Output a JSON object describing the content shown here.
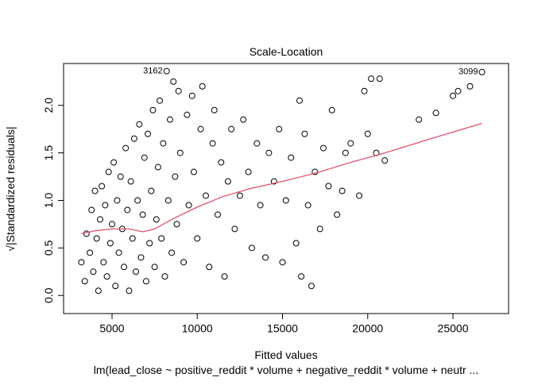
{
  "chart_data": {
    "type": "scatter",
    "title": "Scale-Location",
    "x_label": "Fitted values",
    "y_label": "√|Standardized residuals|",
    "subtitle": "lm(lead_close ~ positive_reddit * volume + negative_reddit * volume + neutr ...",
    "xlim": [
      2157,
      28262
    ],
    "ylim": [
      -0.19,
      2.44
    ],
    "xticks": [
      5000,
      10000,
      15000,
      20000,
      25000
    ],
    "yticks": [
      {
        "value": 0,
        "label": "0.0"
      },
      {
        "value": 0.5,
        "label": "0.5"
      },
      {
        "value": 1,
        "label": "1.0"
      },
      {
        "value": 1.5,
        "label": "1.5"
      },
      {
        "value": 2,
        "label": "2.0"
      }
    ],
    "series": [
      {
        "type": "scatter",
        "color": "#000000",
        "x": [
          3200,
          3400,
          3500,
          3700,
          3800,
          3900,
          4000,
          4100,
          4200,
          4300,
          4400,
          4500,
          4600,
          4700,
          4800,
          4900,
          5000,
          5100,
          5200,
          5300,
          5400,
          5500,
          5600,
          5700,
          5800,
          5900,
          6000,
          6100,
          6200,
          6300,
          6400,
          6500,
          6600,
          6700,
          6800,
          6900,
          7000,
          7100,
          7200,
          7300,
          7400,
          7500,
          7600,
          7700,
          7800,
          7900,
          8000,
          8100,
          8200,
          8300,
          8400,
          8500,
          8600,
          8700,
          8800,
          8900,
          9000,
          9200,
          9400,
          9500,
          9700,
          9800,
          10000,
          10200,
          10300,
          10500,
          10700,
          10900,
          11000,
          11200,
          11400,
          11600,
          11800,
          12000,
          12200,
          12500,
          12700,
          13000,
          13200,
          13500,
          13700,
          14000,
          14200,
          14500,
          14800,
          15000,
          15200,
          15500,
          15800,
          16000,
          16100,
          16300,
          16500,
          16700,
          16900,
          17200,
          17400,
          17700,
          17900,
          18200,
          18500,
          18700,
          19000,
          19500,
          19800,
          20000,
          20200,
          20500,
          20700,
          21000,
          23000,
          24000,
          25000,
          25300,
          26000,
          26700
        ],
        "values": [
          0.35,
          0.15,
          0.65,
          0.45,
          0.9,
          0.25,
          1.1,
          0.6,
          0.05,
          0.8,
          1.15,
          0.35,
          0.95,
          0.2,
          1.3,
          0.55,
          0.75,
          1.4,
          0.1,
          1.0,
          0.45,
          1.25,
          0.7,
          0.3,
          1.55,
          0.9,
          0.05,
          1.2,
          0.6,
          1.65,
          0.25,
          1.0,
          1.8,
          0.4,
          0.85,
          1.45,
          0.15,
          1.7,
          0.55,
          1.1,
          1.95,
          0.3,
          0.8,
          1.35,
          2.05,
          0.6,
          1.6,
          0.2,
          2.36,
          1.0,
          1.85,
          0.45,
          2.25,
          1.25,
          0.75,
          2.15,
          1.5,
          0.35,
          1.9,
          0.95,
          2.1,
          1.3,
          0.6,
          1.75,
          2.2,
          1.05,
          0.3,
          1.6,
          1.95,
          0.85,
          1.4,
          0.2,
          1.2,
          1.75,
          0.7,
          1.05,
          1.85,
          1.3,
          0.5,
          1.6,
          0.95,
          0.4,
          1.5,
          1.2,
          1.75,
          0.35,
          1.0,
          1.45,
          0.55,
          2.05,
          0.2,
          1.7,
          0.95,
          0.1,
          1.3,
          0.7,
          1.55,
          1.15,
          1.95,
          0.85,
          1.1,
          1.5,
          1.6,
          1.05,
          2.15,
          1.7,
          2.28,
          1.5,
          2.28,
          1.42,
          1.85,
          1.92,
          2.1,
          2.15,
          2.2,
          2.35
        ]
      },
      {
        "type": "line",
        "color": "#df536b",
        "x": [
          3200,
          4000,
          5000,
          6000,
          6800,
          7500,
          8500,
          10000,
          11500,
          13000,
          15000,
          17000,
          19000,
          21000,
          23000,
          25000,
          26700
        ],
        "values": [
          0.65,
          0.68,
          0.7,
          0.7,
          0.67,
          0.7,
          0.8,
          0.93,
          1.04,
          1.12,
          1.2,
          1.29,
          1.4,
          1.5,
          1.61,
          1.72,
          1.81
        ]
      }
    ],
    "annotations": [
      {
        "text": "3162",
        "x": 8200,
        "y": 2.36
      },
      {
        "text": "3099",
        "x": 26700,
        "y": 2.35
      }
    ]
  }
}
